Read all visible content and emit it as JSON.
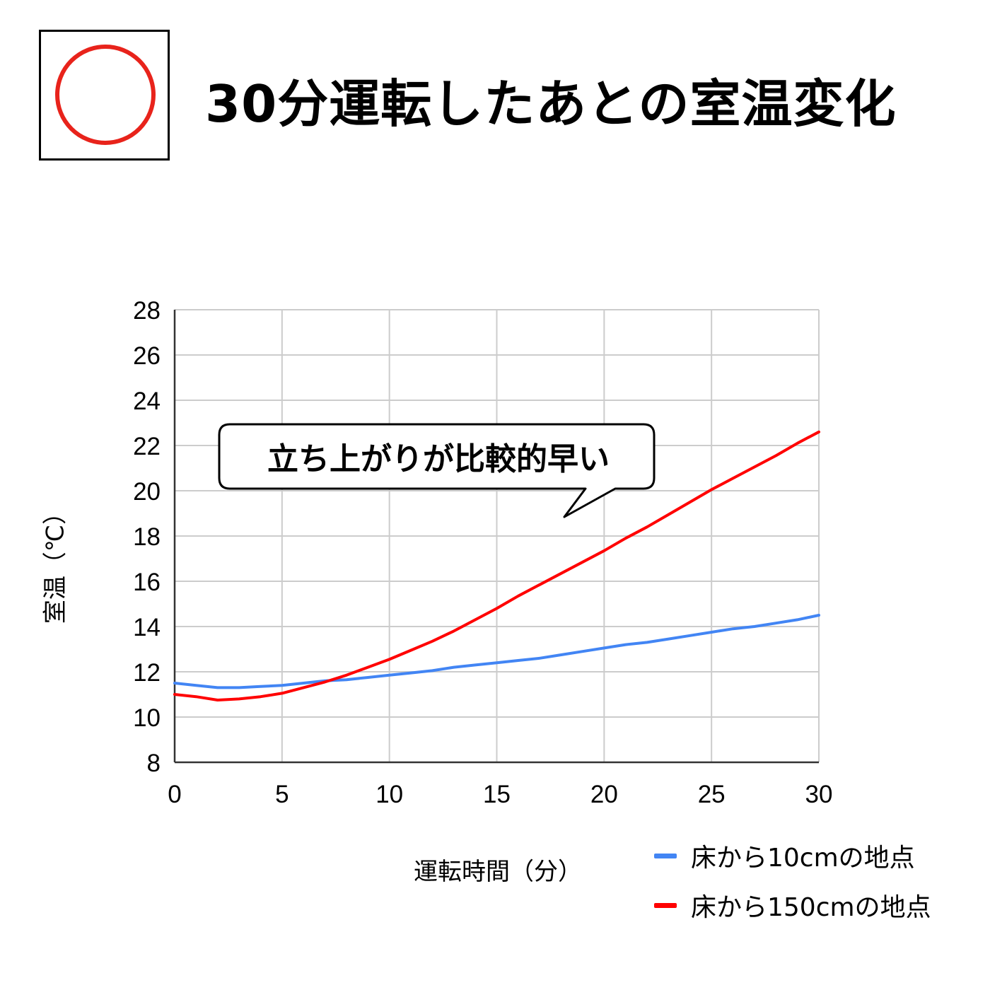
{
  "header": {
    "title": "30分運転したあとの室温変化",
    "badge_icon": "circle-mark-icon",
    "badge_color": "#e8231b"
  },
  "callout": {
    "text": "立ち上がりが比較的早い"
  },
  "chart_data": {
    "type": "line",
    "title": "",
    "xlabel": "運転時間（分）",
    "ylabel": "室温（℃）",
    "xlim": [
      0,
      30
    ],
    "ylim": [
      8,
      28
    ],
    "x_ticks": [
      0,
      5,
      10,
      15,
      20,
      25,
      30
    ],
    "y_ticks": [
      8,
      10,
      12,
      14,
      16,
      18,
      20,
      22,
      24,
      26,
      28
    ],
    "grid": true,
    "legend_position": "bottom-right",
    "x": [
      0,
      1,
      2,
      3,
      4,
      5,
      6,
      7,
      8,
      9,
      10,
      11,
      12,
      13,
      14,
      15,
      16,
      17,
      18,
      19,
      20,
      21,
      22,
      23,
      24,
      25,
      26,
      27,
      28,
      29,
      30
    ],
    "series": [
      {
        "name": "床から10cmの地点",
        "color": "#4285f4",
        "values": [
          11.5,
          11.4,
          11.3,
          11.3,
          11.35,
          11.4,
          11.5,
          11.6,
          11.65,
          11.75,
          11.85,
          11.95,
          12.05,
          12.2,
          12.3,
          12.4,
          12.5,
          12.6,
          12.75,
          12.9,
          13.05,
          13.2,
          13.3,
          13.45,
          13.6,
          13.75,
          13.9,
          14.0,
          14.15,
          14.3,
          14.5
        ]
      },
      {
        "name": "床から150cmの地点",
        "color": "#ff0000",
        "values": [
          11.0,
          10.9,
          10.75,
          10.8,
          10.9,
          11.05,
          11.3,
          11.55,
          11.85,
          12.2,
          12.55,
          12.95,
          13.35,
          13.8,
          14.3,
          14.8,
          15.35,
          15.85,
          16.35,
          16.85,
          17.35,
          17.9,
          18.4,
          18.95,
          19.5,
          20.05,
          20.55,
          21.05,
          21.55,
          22.1,
          22.6
        ]
      }
    ]
  }
}
